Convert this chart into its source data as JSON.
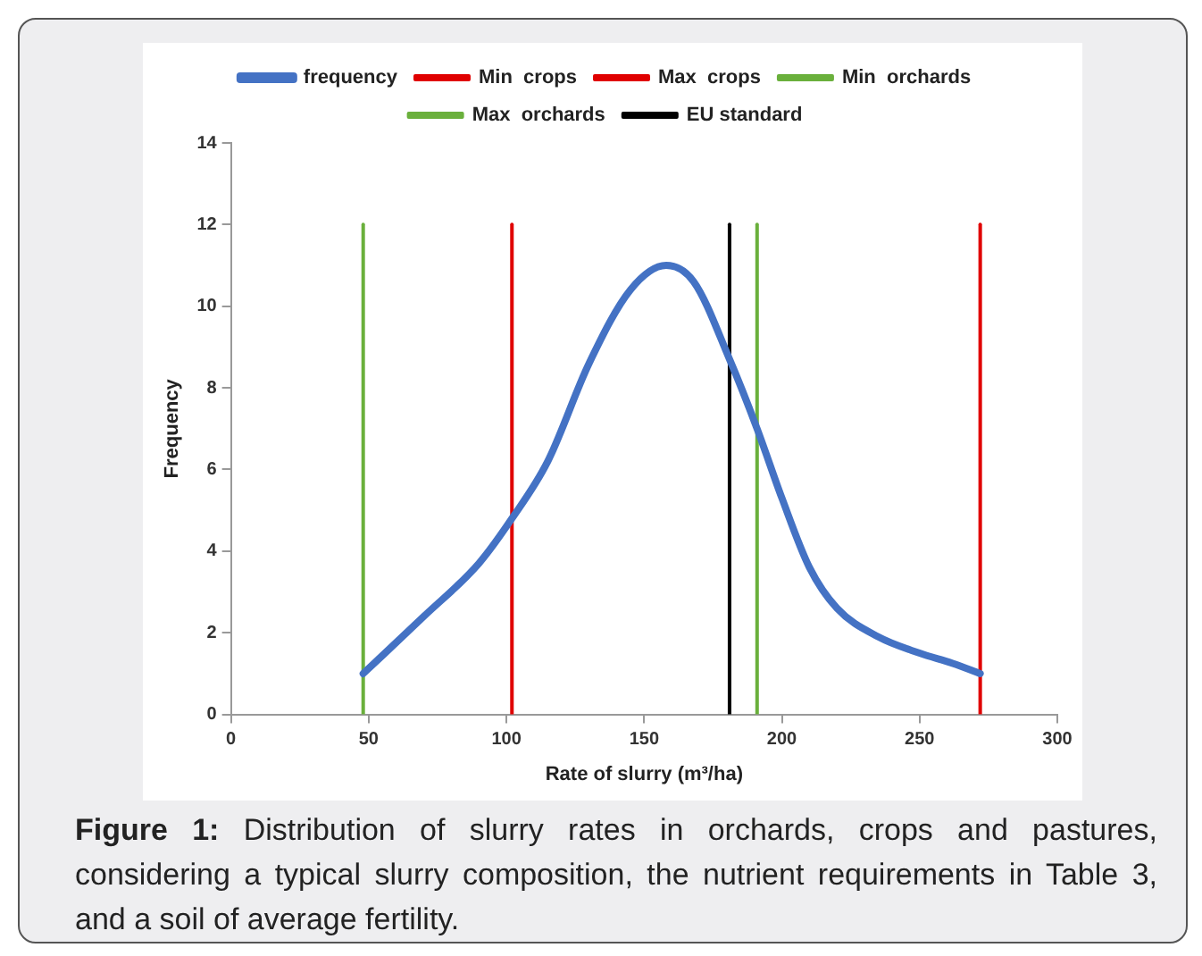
{
  "chart_data": {
    "type": "line",
    "xlabel": "Rate of slurry (m³/ha)",
    "ylabel": "Frequency",
    "xlim": [
      0,
      300
    ],
    "xticks": [
      0,
      50,
      100,
      150,
      200,
      250,
      300
    ],
    "ylim": [
      0,
      14
    ],
    "yticks": [
      0,
      2,
      4,
      6,
      8,
      10,
      12,
      14
    ],
    "grid": false,
    "legend": "top",
    "marker": "none",
    "line_style": "solid",
    "series": [
      {
        "name": "frequency",
        "color": "#4472c4",
        "x": [
          48,
          70,
          90,
          102,
          115,
          130,
          145,
          158,
          168,
          181,
          191,
          200,
          210,
          220,
          235,
          250,
          262,
          272
        ],
        "values": [
          1,
          2.4,
          3.7,
          4.8,
          6.2,
          8.6,
          10.4,
          11,
          10.6,
          8.7,
          7,
          5.3,
          3.6,
          2.6,
          1.9,
          1.5,
          1.25,
          1
        ]
      },
      {
        "name": "Min  crops",
        "color": "#e00000",
        "x": [
          102,
          102
        ],
        "values": [
          0,
          12
        ]
      },
      {
        "name": "Max  crops",
        "color": "#e00000",
        "x": [
          272,
          272
        ],
        "values": [
          0,
          12
        ]
      },
      {
        "name": "Min  orchards",
        "color": "#6ab03c",
        "x": [
          48,
          48
        ],
        "values": [
          0,
          12
        ]
      },
      {
        "name": "Max  orchards",
        "color": "#6ab03c",
        "x": [
          191,
          191
        ],
        "values": [
          0,
          12
        ]
      },
      {
        "name": "EU standard",
        "color": "#000000",
        "x": [
          181,
          181
        ],
        "values": [
          0,
          12
        ]
      }
    ],
    "annotations": [
      "Figure 1: Distribution of slurry rates in orchards, crops and pastures, considering a typical slurry composition, the nutrient requirements in Table 3, and a soil of average fertility."
    ]
  }
}
